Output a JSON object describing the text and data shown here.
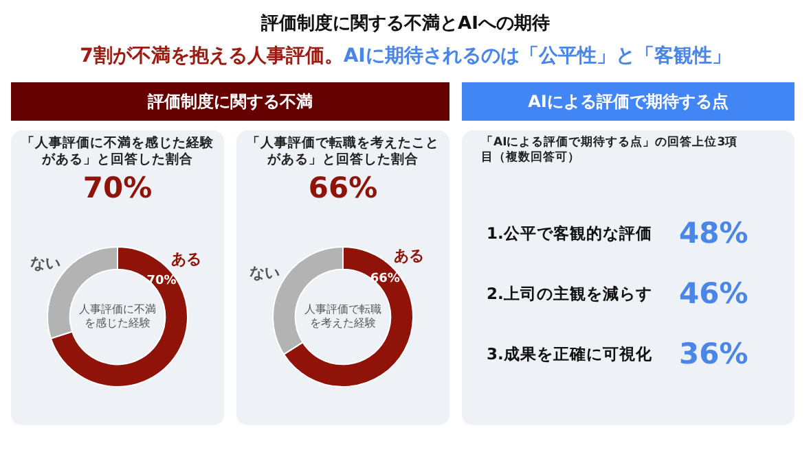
{
  "chart_data": [
    {
      "type": "other",
      "title": "評価制度に関する不満とAIへの期待",
      "subtitle": "7割が不満を抱える人事評価。AIに期待されるのは「公平性」と「客観性」"
    },
    {
      "type": "donut",
      "annotations": [
        "評価制度に関する不満",
        "「人事評価に不満を感じた経験がある」と回答した割合",
        "70%",
        "人事評価に不満を感じた経験"
      ],
      "categories": [
        "ある",
        "ない"
      ],
      "values": [
        70,
        30
      ],
      "colors": [
        "#8f1309",
        "#b3b3b3"
      ],
      "value_labels": [
        "70%",
        null
      ],
      "legend": false
    },
    {
      "type": "donut",
      "annotations": [
        "「人事評価で転職を考えたことがある」と回答した割合",
        "66%",
        "人事評価で転職を考えた経験"
      ],
      "categories": [
        "ある",
        "ない"
      ],
      "values": [
        66,
        34
      ],
      "colors": [
        "#8f1309",
        "#b3b3b3"
      ],
      "value_labels": [
        "66%",
        null
      ],
      "legend": false
    },
    {
      "type": "other",
      "title": "AIによる評価で期待する点",
      "subtitle": "「AIによる評価で期待する点」の回答上位3項目（複数回答可）",
      "categories": [
        "1.公平で客観的な評価",
        "2.上司の主観を減らす",
        "3.成果を正確に可視化"
      ],
      "values": [
        48,
        46,
        36
      ],
      "value_labels": [
        "48%",
        "46%",
        "36%"
      ]
    }
  ]
}
